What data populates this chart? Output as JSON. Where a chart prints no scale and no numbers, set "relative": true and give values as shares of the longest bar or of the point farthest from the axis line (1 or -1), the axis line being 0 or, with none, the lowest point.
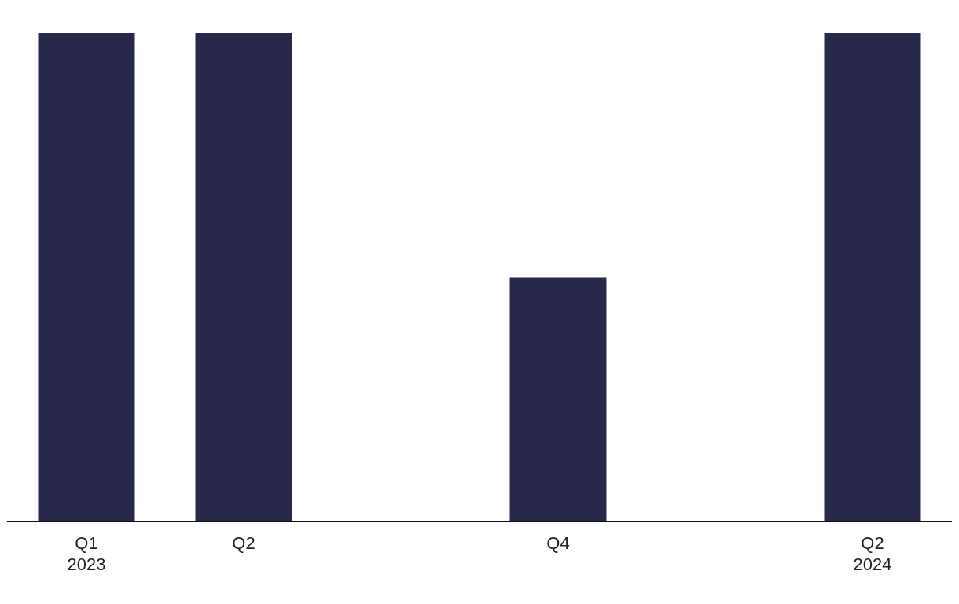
{
  "chart_data": {
    "type": "bar",
    "relative": true,
    "categories": [
      "Q1 2023",
      "Q2",
      null,
      "Q4",
      null,
      "Q2 2024"
    ],
    "values": [
      1,
      1,
      0,
      0.5,
      0,
      1
    ],
    "color": "#28284a",
    "grid": false,
    "legend": false
  }
}
